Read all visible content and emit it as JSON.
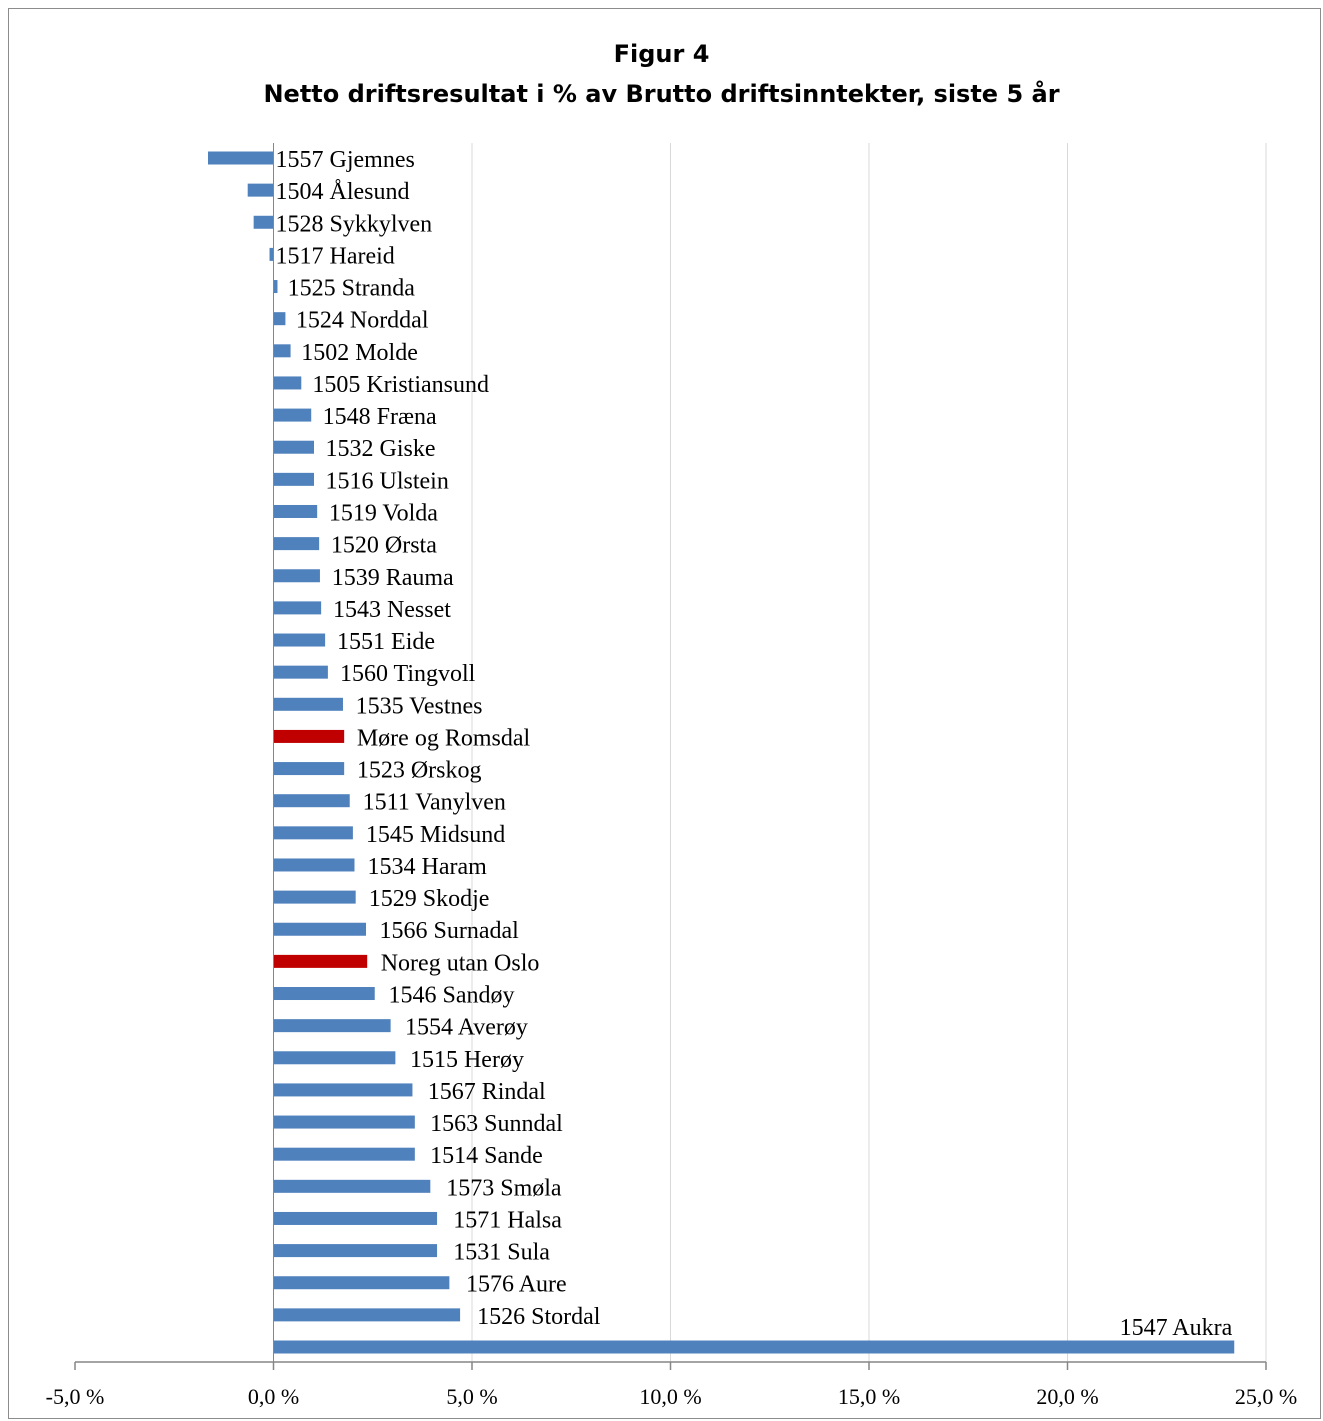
{
  "chart_data": {
    "type": "bar",
    "orientation": "horizontal",
    "title": [
      "Figur 4",
      "Netto driftsresultat i % av Brutto driftsinntekter, siste 5 år"
    ],
    "xlim": [
      -5,
      25
    ],
    "xticks": [
      -5,
      0,
      5,
      10,
      15,
      20,
      25
    ],
    "xtick_labels": [
      "-5,0 %",
      "0,0 %",
      "5,0 %",
      "10,0 %",
      "15,0 %",
      "20,0 %",
      "25,0 %"
    ],
    "grid": "vertical",
    "colors": {
      "default": "#4f81bd",
      "highlight": "#c00000"
    },
    "categories": [
      "1557 Gjemnes",
      "1504 Ålesund",
      "1528 Sykkylven",
      "1517 Hareid",
      "1525 Stranda",
      "1524 Norddal",
      "1502 Molde",
      "1505 Kristiansund",
      "1548 Fræna",
      "1532 Giske",
      "1516 Ulstein",
      "1519 Volda",
      "1520 Ørsta",
      "1539 Rauma",
      "1543 Nesset",
      "1551 Eide",
      "1560 Tingvoll",
      "1535 Vestnes",
      "Møre og Romsdal",
      "1523 Ørskog",
      "1511 Vanylven",
      "1545 Midsund",
      "1534 Haram",
      "1529 Skodje",
      "1566 Surnadal",
      "Noreg utan Oslo",
      "1546 Sandøy",
      "1554 Averøy",
      "1515 Herøy",
      "1567 Rindal",
      "1563 Sunndal",
      "1514 Sande",
      "1573 Smøla",
      "1571 Halsa",
      "1531 Sula",
      "1576 Aure",
      "1526 Stordal",
      "1547 Aukra"
    ],
    "values": [
      -1.65,
      -0.65,
      -0.5,
      -0.1,
      0.1,
      0.3,
      0.43,
      0.7,
      0.95,
      1.02,
      1.02,
      1.1,
      1.15,
      1.17,
      1.2,
      1.3,
      1.37,
      1.75,
      1.78,
      1.78,
      1.92,
      2.0,
      2.04,
      2.07,
      2.33,
      2.36,
      2.55,
      2.95,
      3.07,
      3.5,
      3.56,
      3.56,
      3.95,
      4.12,
      4.12,
      4.43,
      4.7,
      24.2
    ],
    "highlighted": [
      "Møre og Romsdal",
      "Noreg utan Oslo"
    ]
  }
}
